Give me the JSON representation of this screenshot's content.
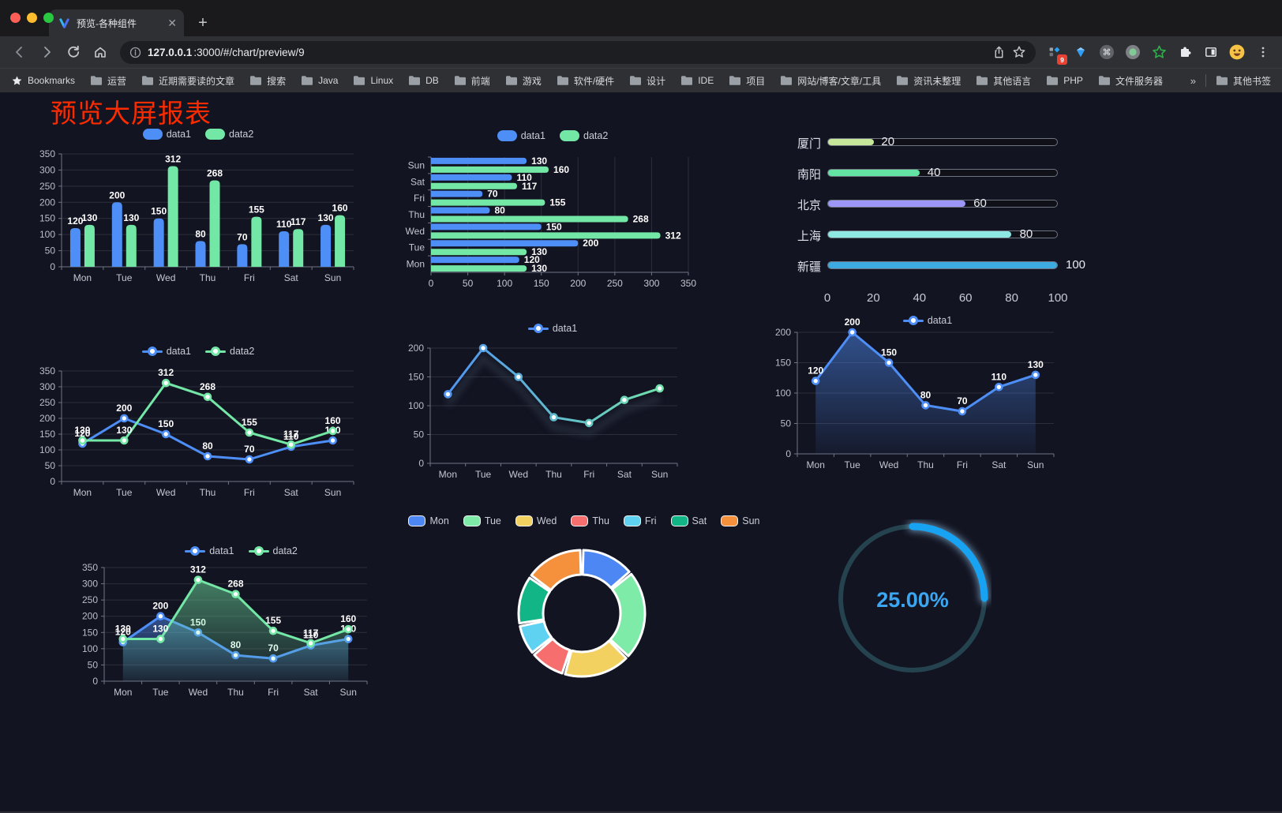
{
  "window": {
    "tab_title": "预览-各种组件",
    "url_host": "127.0.0.1",
    "url_path": ":3000/#/chart/preview/9",
    "extension_badge": "9",
    "traffic_lights": [
      "#ff5f57",
      "#febc2e",
      "#28c840"
    ]
  },
  "bookmarks": {
    "star_label": "Bookmarks",
    "items": [
      "运营",
      "近期需要读的文章",
      "搜索",
      "Java",
      "Linux",
      "DB",
      "前端",
      "游戏",
      "软件/硬件",
      "设计",
      "IDE",
      "项目",
      "网站/博客/文章/工具",
      "资讯未整理",
      "其他语言",
      "PHP",
      "文件服务器"
    ],
    "overflow": "»",
    "other": "其他书签"
  },
  "page": {
    "title": "预览大屏报表",
    "title_color": "#fb2b00",
    "background": "#131422"
  },
  "chart_data": "see charts[]",
  "charts": [
    {
      "type": "bar",
      "legend_position": "top",
      "grid": true,
      "categories": [
        "Mon",
        "Tue",
        "Wed",
        "Thu",
        "Fri",
        "Sat",
        "Sun"
      ],
      "series": [
        {
          "name": "data1",
          "color": "#4e8ef7",
          "values": [
            120,
            200,
            150,
            80,
            70,
            110,
            130
          ]
        },
        {
          "name": "data2",
          "color": "#73e7a5",
          "values": [
            130,
            130,
            312,
            268,
            155,
            117,
            160
          ]
        }
      ],
      "ymax": 350,
      "ystep": 50,
      "labels": true
    },
    {
      "type": "hbar",
      "legend_position": "top",
      "grid": true,
      "categories": [
        "Mon",
        "Tue",
        "Wed",
        "Thu",
        "Fri",
        "Sat",
        "Sun"
      ],
      "series": [
        {
          "name": "data1",
          "color": "#4e8ef7",
          "values": [
            120,
            200,
            150,
            80,
            70,
            110,
            130
          ]
        },
        {
          "name": "data2",
          "color": "#73e7a5",
          "values": [
            130,
            130,
            312,
            268,
            155,
            117,
            160
          ]
        }
      ],
      "xmax": 350,
      "xstep": 50,
      "labels": true
    },
    {
      "type": "capsule",
      "max": 100,
      "ticks": [
        0,
        20,
        40,
        60,
        80,
        100
      ],
      "rows": [
        {
          "label": "厦门",
          "value": 20,
          "color": "#c7e89b"
        },
        {
          "label": "南阳",
          "value": 40,
          "color": "#63e3a3"
        },
        {
          "label": "北京",
          "value": 60,
          "color": "#9c96f6"
        },
        {
          "label": "上海",
          "value": 80,
          "color": "#8de8e3"
        },
        {
          "label": "新疆",
          "value": 100,
          "color": "#3dabdf"
        }
      ]
    },
    {
      "type": "line",
      "legend_position": "top",
      "grid": true,
      "categories": [
        "Mon",
        "Tue",
        "Wed",
        "Thu",
        "Fri",
        "Sat",
        "Sun"
      ],
      "series": [
        {
          "name": "data1",
          "color": "#4e8ef7",
          "values": [
            120,
            200,
            150,
            80,
            70,
            110,
            130
          ]
        },
        {
          "name": "data2",
          "color": "#73e7a5",
          "values": [
            130,
            130,
            312,
            268,
            155,
            117,
            160
          ]
        }
      ],
      "ymax": 350,
      "ystep": 50,
      "labels": true
    },
    {
      "type": "line",
      "legend_position": "top",
      "grid": true,
      "categories": [
        "Mon",
        "Tue",
        "Wed",
        "Thu",
        "Fri",
        "Sat",
        "Sun"
      ],
      "series": [
        {
          "name": "data1",
          "color": "#4e8ef7",
          "values": [
            120,
            200,
            150,
            80,
            70,
            110,
            130
          ]
        }
      ],
      "gradient_line": [
        "#4e8ef7",
        "#73e7a5"
      ],
      "ymax": 200,
      "ystep": 50,
      "labels": false,
      "shadow": true
    },
    {
      "type": "line",
      "legend_position": "top",
      "grid": true,
      "area": true,
      "categories": [
        "Mon",
        "Tue",
        "Wed",
        "Thu",
        "Fri",
        "Sat",
        "Sun"
      ],
      "series": [
        {
          "name": "data1",
          "color": "#4e8ef7",
          "values": [
            120,
            200,
            150,
            80,
            70,
            110,
            130
          ]
        }
      ],
      "ymax": 200,
      "ystep": 50,
      "labels": true
    },
    {
      "type": "line",
      "legend_position": "top",
      "grid": true,
      "area": true,
      "categories": [
        "Mon",
        "Tue",
        "Wed",
        "Thu",
        "Fri",
        "Sat",
        "Sun"
      ],
      "series": [
        {
          "name": "data1",
          "color": "#4e8ef7",
          "values": [
            120,
            200,
            150,
            80,
            70,
            110,
            130
          ]
        },
        {
          "name": "data2",
          "color": "#73e7a5",
          "values": [
            130,
            130,
            312,
            268,
            155,
            117,
            160
          ]
        }
      ],
      "ymax": 350,
      "ystep": 50,
      "labels": true
    },
    {
      "type": "donut",
      "legend_position": "top",
      "items": [
        {
          "name": "Mon",
          "value": 120,
          "color": "#4d87f3"
        },
        {
          "name": "Tue",
          "value": 200,
          "color": "#7feba8"
        },
        {
          "name": "Wed",
          "value": 150,
          "color": "#f2d160"
        },
        {
          "name": "Thu",
          "value": 80,
          "color": "#f66e6e"
        },
        {
          "name": "Fri",
          "value": 70,
          "color": "#5fd2f2"
        },
        {
          "name": "Sat",
          "value": 110,
          "color": "#12b586"
        },
        {
          "name": "Sun",
          "value": 130,
          "color": "#f5913c"
        }
      ]
    },
    {
      "type": "gauge",
      "percent": 25,
      "display": "25.00%",
      "color": "#18a2f2",
      "track": "#24434f"
    }
  ]
}
